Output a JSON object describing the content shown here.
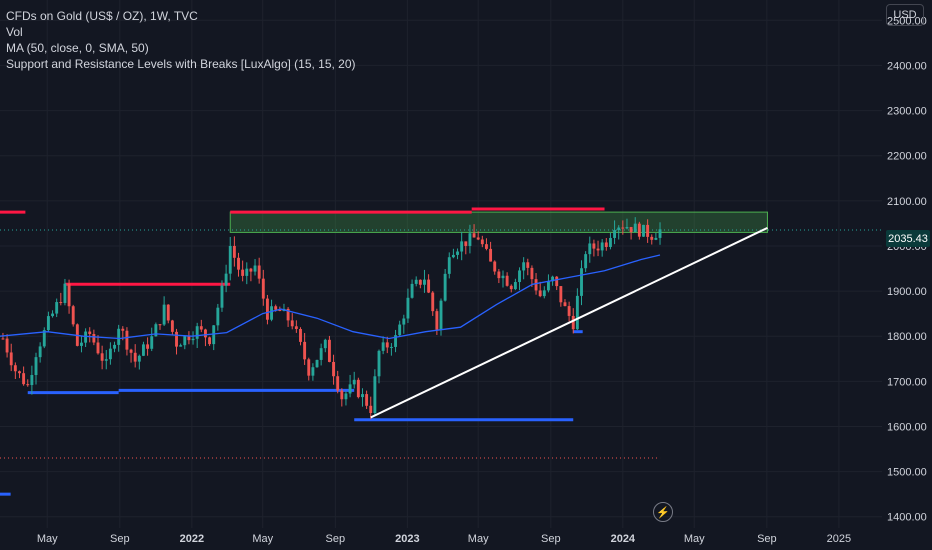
{
  "legend": {
    "title": "CFDs on Gold (US$ / OZ), 1W, TVC",
    "vol": "Vol",
    "ma": "MA (50, close, 0, SMA, 50)",
    "sr": "Support and Resistance Levels with Breaks [LuxAlgo] (15, 15, 20)"
  },
  "currency": "USD",
  "last_price_label": "2035.43",
  "icons": {
    "flash": "flash-icon"
  },
  "colors": {
    "background": "#131722",
    "up": "#26a69a",
    "down": "#ef5350",
    "resistance": "#ff1744",
    "support": "#2962ff",
    "ma": "#2962ff",
    "trendline": "#ffffff",
    "zone": "#4caf50"
  },
  "chart_data": {
    "type": "candlestick",
    "title": "CFDs on Gold (US$ / OZ), 1W, TVC",
    "y_axis": {
      "ticks": [
        1400,
        1500,
        1600,
        1700,
        1800,
        1900,
        2000,
        2100,
        2200,
        2300,
        2400,
        2500
      ],
      "tick_labels": [
        "1400.00",
        "1500.00",
        "1600.00",
        "1700.00",
        "1800.00",
        "1900.00",
        "2000.00",
        "2100.00",
        "2200.00",
        "2300.00",
        "2400.00",
        "2500.00"
      ],
      "range": [
        1375,
        2545
      ]
    },
    "x_axis": {
      "tick_labels": [
        "May",
        "Sep",
        "2022",
        "May",
        "Sep",
        "2023",
        "May",
        "Sep",
        "2024",
        "May",
        "Sep",
        "2025"
      ],
      "tick_dates": [
        "2021-05-01",
        "2021-09-01",
        "2022-01-01",
        "2022-05-01",
        "2022-09-01",
        "2023-01-01",
        "2023-05-01",
        "2023-09-01",
        "2024-01-01",
        "2024-05-01",
        "2024-09-01",
        "2025-01-01"
      ],
      "bold_labels": [
        "2022",
        "2023",
        "2024"
      ],
      "range": [
        "2021-02-10",
        "2025-03-15"
      ]
    },
    "price_path": [
      [
        "2021-02-15",
        1795
      ],
      [
        "2021-03-08",
        1725
      ],
      [
        "2021-03-29",
        1690
      ],
      [
        "2021-04-12",
        1765
      ],
      [
        "2021-05-03",
        1830
      ],
      [
        "2021-05-31",
        1905
      ],
      [
        "2021-06-21",
        1780
      ],
      [
        "2021-07-12",
        1805
      ],
      [
        "2021-08-09",
        1735
      ],
      [
        "2021-08-30",
        1825
      ],
      [
        "2021-09-27",
        1745
      ],
      [
        "2021-10-25",
        1795
      ],
      [
        "2021-11-15",
        1860
      ],
      [
        "2021-12-06",
        1785
      ],
      [
        "2022-01-10",
        1815
      ],
      [
        "2022-01-31",
        1795
      ],
      [
        "2022-02-21",
        1900
      ],
      [
        "2022-03-07",
        2000
      ],
      [
        "2022-03-28",
        1925
      ],
      [
        "2022-04-18",
        1955
      ],
      [
        "2022-05-09",
        1850
      ],
      [
        "2022-05-30",
        1855
      ],
      [
        "2022-06-20",
        1830
      ],
      [
        "2022-07-18",
        1725
      ],
      [
        "2022-08-15",
        1780
      ],
      [
        "2022-09-12",
        1665
      ],
      [
        "2022-10-03",
        1690
      ],
      [
        "2022-10-31",
        1640
      ],
      [
        "2022-11-14",
        1765
      ],
      [
        "2022-12-12",
        1795
      ],
      [
        "2023-01-09",
        1905
      ],
      [
        "2023-01-30",
        1930
      ],
      [
        "2023-02-20",
        1820
      ],
      [
        "2023-03-13",
        1990
      ],
      [
        "2023-04-10",
        2010
      ],
      [
        "2023-05-01",
        2020
      ],
      [
        "2023-05-22",
        1960
      ],
      [
        "2023-06-26",
        1915
      ],
      [
        "2023-07-17",
        1965
      ],
      [
        "2023-08-14",
        1890
      ],
      [
        "2023-09-04",
        1925
      ],
      [
        "2023-09-25",
        1860
      ],
      [
        "2023-10-09",
        1830
      ],
      [
        "2023-10-30",
        1990
      ],
      [
        "2023-11-20",
        2000
      ],
      [
        "2023-12-04",
        2010
      ],
      [
        "2023-12-18",
        2050
      ],
      [
        "2024-01-08",
        2045
      ],
      [
        "2024-01-29",
        2035
      ],
      [
        "2024-02-19",
        2025
      ],
      [
        "2024-03-04",
        2035
      ]
    ],
    "moving_average": {
      "name": "MA (50, close, 0, SMA, 50)",
      "points": [
        [
          "2021-02-10",
          1800
        ],
        [
          "2021-05-01",
          1810
        ],
        [
          "2021-07-01",
          1800
        ],
        [
          "2021-09-01",
          1795
        ],
        [
          "2021-11-01",
          1805
        ],
        [
          "2022-01-01",
          1800
        ],
        [
          "2022-03-01",
          1808
        ],
        [
          "2022-05-01",
          1850
        ],
        [
          "2022-06-01",
          1860
        ],
        [
          "2022-08-01",
          1840
        ],
        [
          "2022-10-01",
          1810
        ],
        [
          "2022-12-01",
          1795
        ],
        [
          "2023-02-01",
          1810
        ],
        [
          "2023-04-01",
          1820
        ],
        [
          "2023-06-01",
          1870
        ],
        [
          "2023-08-01",
          1915
        ],
        [
          "2023-10-01",
          1930
        ],
        [
          "2023-12-01",
          1945
        ],
        [
          "2024-02-01",
          1970
        ],
        [
          "2024-03-04",
          1980
        ]
      ]
    },
    "sr_zone": {
      "from": "2022-03-07",
      "to": "2024-09-02",
      "low": 2030,
      "high": 2075
    },
    "resistance_levels": [
      {
        "from": "2021-02-10",
        "to": "2021-03-25",
        "value": 2075
      },
      {
        "from": "2021-05-31",
        "to": "2022-03-07",
        "value": 1915
      },
      {
        "from": "2022-03-07",
        "to": "2023-04-20",
        "value": 2075
      },
      {
        "from": "2023-04-20",
        "to": "2023-12-01",
        "value": 2082
      }
    ],
    "support_levels": [
      {
        "from": "2021-03-29",
        "to": "2021-08-30",
        "value": 1675
      },
      {
        "from": "2021-08-30",
        "to": "2022-10-03",
        "value": 1680
      },
      {
        "from": "2022-10-03",
        "to": "2023-10-09",
        "value": 1615
      },
      {
        "from": "2023-10-09",
        "to": "2023-10-25",
        "value": 1810
      },
      {
        "from": "2021-02-10",
        "to": "2021-02-28",
        "value": 1450
      }
    ],
    "trendline": {
      "from": [
        "2022-10-31",
        1620
      ],
      "to": [
        "2024-09-02",
        2040
      ]
    },
    "last_price": 2035.43,
    "reference_dotted_level": 1530
  }
}
